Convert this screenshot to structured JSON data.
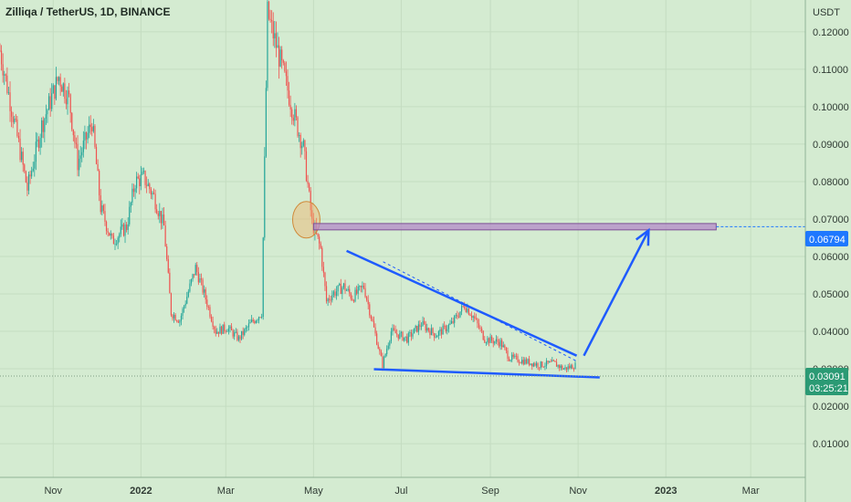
{
  "chart_data": {
    "type": "candlestick",
    "title": "Zilliqa / TetherUS, 1D, BINANCE",
    "currency": "USDT",
    "y_ticks": [
      0.12,
      0.11,
      0.1,
      0.09,
      0.08,
      0.07,
      0.06,
      0.05,
      0.04,
      0.03,
      0.02,
      0.01
    ],
    "y_tick_labels": [
      "0.12000",
      "0.11000",
      "0.10000",
      "0.09000",
      "0.08000",
      "0.07000",
      "0.06000",
      "0.05000",
      "0.04000",
      "0.03000",
      "0.02000",
      "0.01000"
    ],
    "ylim": [
      0.001,
      0.1285
    ],
    "x_ticks": [
      "Nov",
      "2022",
      "Mar",
      "May",
      "Jul",
      "Sep",
      "Nov",
      "2023",
      "Mar"
    ],
    "x_tick_dates": [
      "2021-11-01",
      "2022-01-01",
      "2022-03-01",
      "2022-05-01",
      "2022-07-01",
      "2022-09-01",
      "2022-11-01",
      "2023-01-01",
      "2023-03-01"
    ],
    "xlim": [
      "2021-09-25",
      "2023-04-08"
    ],
    "series_price_points": [
      [
        "2021-09-25",
        0.115
      ],
      [
        "2021-10-08",
        0.09
      ],
      [
        "2021-10-14",
        0.078
      ],
      [
        "2021-10-24",
        0.095
      ],
      [
        "2021-11-05",
        0.108
      ],
      [
        "2021-11-12",
        0.102
      ],
      [
        "2021-11-18",
        0.085
      ],
      [
        "2021-11-28",
        0.096
      ],
      [
        "2021-12-04",
        0.073
      ],
      [
        "2021-12-12",
        0.064
      ],
      [
        "2021-12-22",
        0.068
      ],
      [
        "2021-12-28",
        0.08
      ],
      [
        "2022-01-03",
        0.081
      ],
      [
        "2022-01-10",
        0.076
      ],
      [
        "2022-01-17",
        0.068
      ],
      [
        "2022-01-22",
        0.045
      ],
      [
        "2022-01-28",
        0.043
      ],
      [
        "2022-02-08",
        0.057
      ],
      [
        "2022-02-14",
        0.05
      ],
      [
        "2022-02-22",
        0.04
      ],
      [
        "2022-03-02",
        0.041
      ],
      [
        "2022-03-10",
        0.038
      ],
      [
        "2022-03-18",
        0.042
      ],
      [
        "2022-03-26",
        0.045
      ],
      [
        "2022-03-30",
        0.125
      ],
      [
        "2022-04-06",
        0.115
      ],
      [
        "2022-04-12",
        0.106
      ],
      [
        "2022-04-18",
        0.097
      ],
      [
        "2022-04-24",
        0.089
      ],
      [
        "2022-04-30",
        0.069
      ],
      [
        "2022-05-06",
        0.062
      ],
      [
        "2022-05-10",
        0.048
      ],
      [
        "2022-05-14",
        0.05
      ],
      [
        "2022-05-22",
        0.052
      ],
      [
        "2022-05-28",
        0.049
      ],
      [
        "2022-06-05",
        0.052
      ],
      [
        "2022-06-10",
        0.044
      ],
      [
        "2022-06-18",
        0.031
      ],
      [
        "2022-06-24",
        0.04
      ],
      [
        "2022-07-05",
        0.038
      ],
      [
        "2022-07-15",
        0.042
      ],
      [
        "2022-07-25",
        0.039
      ],
      [
        "2022-08-05",
        0.042
      ],
      [
        "2022-08-14",
        0.047
      ],
      [
        "2022-08-20",
        0.044
      ],
      [
        "2022-08-28",
        0.038
      ],
      [
        "2022-09-08",
        0.037
      ],
      [
        "2022-09-14",
        0.033
      ],
      [
        "2022-09-25",
        0.032
      ],
      [
        "2022-10-05",
        0.031
      ],
      [
        "2022-10-15",
        0.0315
      ],
      [
        "2022-10-22",
        0.03
      ],
      [
        "2022-10-30",
        0.03091
      ]
    ],
    "current_price": "0.03091",
    "countdown": "03:25:21",
    "level_label": "0.06794",
    "level_value": 0.06794,
    "annotations": {
      "resistance_line": {
        "from": [
          "2022-05-24",
          0.0615
        ],
        "to": [
          "2022-10-31",
          0.0335
        ]
      },
      "support_line": {
        "from": [
          "2022-06-12",
          0.0299
        ],
        "to": [
          "2022-11-16",
          0.0277
        ]
      },
      "breakout_arrow": {
        "from": [
          "2022-11-05",
          0.0335
        ],
        "to": [
          "2022-12-20",
          0.067
        ]
      },
      "resistance_zone": {
        "from": "2022-05-01",
        "to": "2023-02-05",
        "ylim": [
          0.0671,
          0.0688
        ]
      },
      "highlight_circle": {
        "center": [
          "2022-04-26",
          0.0698
        ]
      }
    }
  }
}
